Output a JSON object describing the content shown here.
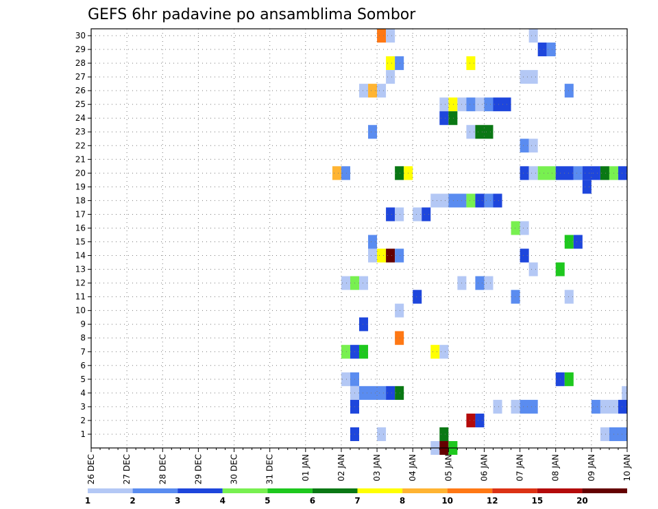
{
  "chart_data": {
    "type": "heatmap",
    "title": "GEFS 6hr padavine po ansamblima Sombor",
    "xlabel": "",
    "ylabel": "",
    "x_ticks": [
      "26 DEC",
      "27 DEC",
      "28 DEC",
      "29 DEC",
      "30 DEC",
      "31 DEC",
      "01 JAN",
      "02 JAN",
      "03 JAN",
      "04 JAN",
      "05 JAN",
      "06 JAN",
      "07 JAN",
      "08 JAN",
      "09 JAN",
      "10 JAN"
    ],
    "y_ticks": [
      "1",
      "2",
      "3",
      "4",
      "5",
      "6",
      "7",
      "8",
      "9",
      "10",
      "11",
      "12",
      "13",
      "14",
      "15",
      "16",
      "17",
      "18",
      "19",
      "20",
      "21",
      "22",
      "23",
      "24",
      "25",
      "26",
      "27",
      "28",
      "29",
      "30"
    ],
    "x_unit": "days since 26 DEC",
    "xlim": [
      0,
      15
    ],
    "ylim": [
      0,
      30
    ],
    "grid": true,
    "colorbar": {
      "labels": [
        "1",
        "2",
        "3",
        "4",
        "5",
        "6",
        "7",
        "8",
        "10",
        "12",
        "15",
        "20"
      ],
      "colors": [
        "#b4c8f5",
        "#5a8cf0",
        "#1e46dc",
        "#78f050",
        "#1ec81e",
        "#0a7814",
        "#ffff00",
        "#ffb432",
        "#ff7814",
        "#dc3214",
        "#b40a0a",
        "#640000"
      ]
    },
    "cells": [
      {
        "m": 30,
        "x": 8.0,
        "w": 0.25,
        "c": 9
      },
      {
        "m": 30,
        "x": 8.25,
        "w": 0.25,
        "c": 1
      },
      {
        "m": 30,
        "x": 12.25,
        "w": 0.25,
        "c": 1
      },
      {
        "m": 29,
        "x": 12.5,
        "w": 0.25,
        "c": 3
      },
      {
        "m": 29,
        "x": 12.75,
        "w": 0.25,
        "c": 2
      },
      {
        "m": 28,
        "x": 8.25,
        "w": 0.25,
        "c": 7
      },
      {
        "m": 28,
        "x": 8.5,
        "w": 0.25,
        "c": 2
      },
      {
        "m": 28,
        "x": 10.5,
        "w": 0.25,
        "c": 7
      },
      {
        "m": 27,
        "x": 8.25,
        "w": 0.25,
        "c": 1
      },
      {
        "m": 27,
        "x": 12.0,
        "w": 0.5,
        "c": 1
      },
      {
        "m": 26,
        "x": 7.5,
        "w": 0.25,
        "c": 1
      },
      {
        "m": 26,
        "x": 7.75,
        "w": 0.25,
        "c": 8
      },
      {
        "m": 26,
        "x": 8.0,
        "w": 0.25,
        "c": 1
      },
      {
        "m": 26,
        "x": 13.25,
        "w": 0.25,
        "c": 2
      },
      {
        "m": 25,
        "x": 9.75,
        "w": 0.25,
        "c": 1
      },
      {
        "m": 25,
        "x": 10.0,
        "w": 0.25,
        "c": 7
      },
      {
        "m": 25,
        "x": 10.25,
        "w": 0.25,
        "c": 1
      },
      {
        "m": 25,
        "x": 10.5,
        "w": 0.25,
        "c": 2
      },
      {
        "m": 25,
        "x": 10.75,
        "w": 0.25,
        "c": 1
      },
      {
        "m": 25,
        "x": 11.0,
        "w": 0.25,
        "c": 2
      },
      {
        "m": 25,
        "x": 11.25,
        "w": 0.5,
        "c": 3
      },
      {
        "m": 24,
        "x": 9.75,
        "w": 0.25,
        "c": 3
      },
      {
        "m": 24,
        "x": 10.0,
        "w": 0.25,
        "c": 6
      },
      {
        "m": 23,
        "x": 7.75,
        "w": 0.25,
        "c": 2
      },
      {
        "m": 23,
        "x": 10.5,
        "w": 0.25,
        "c": 1
      },
      {
        "m": 23,
        "x": 10.75,
        "w": 0.5,
        "c": 6
      },
      {
        "m": 22,
        "x": 12.0,
        "w": 0.25,
        "c": 2
      },
      {
        "m": 22,
        "x": 12.25,
        "w": 0.25,
        "c": 1
      },
      {
        "m": 20,
        "x": 6.75,
        "w": 0.25,
        "c": 8
      },
      {
        "m": 20,
        "x": 7.0,
        "w": 0.25,
        "c": 2
      },
      {
        "m": 20,
        "x": 8.5,
        "w": 0.25,
        "c": 6
      },
      {
        "m": 20,
        "x": 8.75,
        "w": 0.25,
        "c": 7
      },
      {
        "m": 20,
        "x": 12.0,
        "w": 0.25,
        "c": 3
      },
      {
        "m": 20,
        "x": 12.25,
        "w": 0.25,
        "c": 1
      },
      {
        "m": 20,
        "x": 12.5,
        "w": 0.5,
        "c": 4
      },
      {
        "m": 20,
        "x": 13.0,
        "w": 0.5,
        "c": 3
      },
      {
        "m": 20,
        "x": 13.5,
        "w": 0.25,
        "c": 2
      },
      {
        "m": 20,
        "x": 13.75,
        "w": 0.5,
        "c": 3
      },
      {
        "m": 20,
        "x": 14.25,
        "w": 0.25,
        "c": 6
      },
      {
        "m": 20,
        "x": 14.5,
        "w": 0.25,
        "c": 4
      },
      {
        "m": 20,
        "x": 14.75,
        "w": 0.25,
        "c": 3
      },
      {
        "m": 19,
        "x": 13.75,
        "w": 0.25,
        "c": 3
      },
      {
        "m": 18,
        "x": 9.5,
        "w": 0.5,
        "c": 1
      },
      {
        "m": 18,
        "x": 10.0,
        "w": 0.5,
        "c": 2
      },
      {
        "m": 18,
        "x": 10.5,
        "w": 0.25,
        "c": 4
      },
      {
        "m": 18,
        "x": 10.75,
        "w": 0.25,
        "c": 3
      },
      {
        "m": 18,
        "x": 11.0,
        "w": 0.25,
        "c": 2
      },
      {
        "m": 18,
        "x": 11.25,
        "w": 0.25,
        "c": 3
      },
      {
        "m": 17,
        "x": 8.25,
        "w": 0.25,
        "c": 3
      },
      {
        "m": 17,
        "x": 8.5,
        "w": 0.25,
        "c": 1
      },
      {
        "m": 17,
        "x": 9.0,
        "w": 0.25,
        "c": 1
      },
      {
        "m": 17,
        "x": 9.25,
        "w": 0.25,
        "c": 3
      },
      {
        "m": 16,
        "x": 11.75,
        "w": 0.25,
        "c": 4
      },
      {
        "m": 16,
        "x": 12.0,
        "w": 0.25,
        "c": 1
      },
      {
        "m": 15,
        "x": 7.75,
        "w": 0.25,
        "c": 2
      },
      {
        "m": 15,
        "x": 13.25,
        "w": 0.25,
        "c": 5
      },
      {
        "m": 15,
        "x": 13.5,
        "w": 0.25,
        "c": 3
      },
      {
        "m": 14,
        "x": 7.75,
        "w": 0.25,
        "c": 1
      },
      {
        "m": 14,
        "x": 8.0,
        "w": 0.25,
        "c": 7
      },
      {
        "m": 14,
        "x": 8.25,
        "w": 0.25,
        "c": 12
      },
      {
        "m": 14,
        "x": 8.5,
        "w": 0.25,
        "c": 2
      },
      {
        "m": 14,
        "x": 12.0,
        "w": 0.25,
        "c": 3
      },
      {
        "m": 13,
        "x": 12.25,
        "w": 0.25,
        "c": 1
      },
      {
        "m": 13,
        "x": 13.0,
        "w": 0.25,
        "c": 5
      },
      {
        "m": 12,
        "x": 7.0,
        "w": 0.25,
        "c": 1
      },
      {
        "m": 12,
        "x": 7.25,
        "w": 0.25,
        "c": 4
      },
      {
        "m": 12,
        "x": 7.5,
        "w": 0.25,
        "c": 1
      },
      {
        "m": 12,
        "x": 10.25,
        "w": 0.25,
        "c": 1
      },
      {
        "m": 12,
        "x": 10.75,
        "w": 0.25,
        "c": 2
      },
      {
        "m": 12,
        "x": 11.0,
        "w": 0.25,
        "c": 1
      },
      {
        "m": 11,
        "x": 9.0,
        "w": 0.25,
        "c": 3
      },
      {
        "m": 11,
        "x": 11.75,
        "w": 0.25,
        "c": 2
      },
      {
        "m": 11,
        "x": 13.25,
        "w": 0.25,
        "c": 1
      },
      {
        "m": 10,
        "x": 8.5,
        "w": 0.25,
        "c": 1
      },
      {
        "m": 9,
        "x": 7.5,
        "w": 0.25,
        "c": 3
      },
      {
        "m": 8,
        "x": 8.5,
        "w": 0.25,
        "c": 9
      },
      {
        "m": 7,
        "x": 7.0,
        "w": 0.25,
        "c": 4
      },
      {
        "m": 7,
        "x": 7.25,
        "w": 0.25,
        "c": 3
      },
      {
        "m": 7,
        "x": 7.5,
        "w": 0.25,
        "c": 5
      },
      {
        "m": 7,
        "x": 9.5,
        "w": 0.25,
        "c": 7
      },
      {
        "m": 7,
        "x": 9.75,
        "w": 0.25,
        "c": 1
      },
      {
        "m": 5,
        "x": 7.0,
        "w": 0.25,
        "c": 1
      },
      {
        "m": 5,
        "x": 7.25,
        "w": 0.25,
        "c": 2
      },
      {
        "m": 5,
        "x": 13.0,
        "w": 0.25,
        "c": 3
      },
      {
        "m": 5,
        "x": 13.25,
        "w": 0.25,
        "c": 5
      },
      {
        "m": 4,
        "x": 7.25,
        "w": 0.25,
        "c": 1
      },
      {
        "m": 4,
        "x": 7.5,
        "w": 0.75,
        "c": 2
      },
      {
        "m": 4,
        "x": 8.25,
        "w": 0.25,
        "c": 3
      },
      {
        "m": 4,
        "x": 8.5,
        "w": 0.25,
        "c": 6
      },
      {
        "m": 4,
        "x": 14.85,
        "w": 0.15,
        "c": 1
      },
      {
        "m": 3,
        "x": 7.25,
        "w": 0.25,
        "c": 3
      },
      {
        "m": 3,
        "x": 11.25,
        "w": 0.25,
        "c": 1
      },
      {
        "m": 3,
        "x": 11.75,
        "w": 0.25,
        "c": 1
      },
      {
        "m": 3,
        "x": 12.0,
        "w": 0.5,
        "c": 2
      },
      {
        "m": 3,
        "x": 14.0,
        "w": 0.25,
        "c": 2
      },
      {
        "m": 3,
        "x": 14.25,
        "w": 0.5,
        "c": 1
      },
      {
        "m": 3,
        "x": 14.75,
        "w": 0.25,
        "c": 3
      },
      {
        "m": 2,
        "x": 10.5,
        "w": 0.25,
        "c": 11
      },
      {
        "m": 2,
        "x": 10.75,
        "w": 0.25,
        "c": 3
      },
      {
        "m": 1,
        "x": 7.25,
        "w": 0.25,
        "c": 3
      },
      {
        "m": 1,
        "x": 8.0,
        "w": 0.25,
        "c": 1
      },
      {
        "m": 1,
        "x": 9.75,
        "w": 0.25,
        "c": 6
      },
      {
        "m": 1,
        "x": 14.25,
        "w": 0.25,
        "c": 1
      },
      {
        "m": 1,
        "x": 14.5,
        "w": 0.5,
        "c": 2
      },
      {
        "m": 0,
        "x": 9.5,
        "w": 0.25,
        "c": 1
      },
      {
        "m": 0,
        "x": 9.75,
        "w": 0.25,
        "c": 12
      },
      {
        "m": 0,
        "x": 10.0,
        "w": 0.25,
        "c": 5
      }
    ]
  }
}
